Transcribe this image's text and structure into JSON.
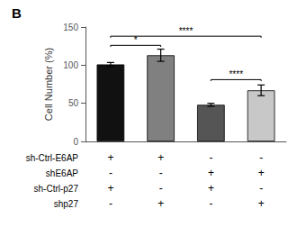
{
  "chart_data": {
    "type": "bar",
    "title": "B",
    "ylabel": "Cell Number (%)",
    "categories": [
      null,
      null,
      null,
      null
    ],
    "values": [
      101,
      113,
      48,
      67
    ],
    "errors": [
      2.5,
      8,
      2,
      7
    ],
    "colors": [
      "#111111",
      "#808080",
      "#555555",
      "#c8c8c8"
    ],
    "ylim": [
      0,
      150
    ],
    "yticks": [
      0,
      50,
      100,
      150
    ],
    "grid": false,
    "tick_labels": "y",
    "brackets": [
      {
        "from": 0,
        "to": 1,
        "y": 126,
        "label": "*"
      },
      {
        "from": 0,
        "to": 3,
        "y": 138,
        "label": "****"
      },
      {
        "from": 2,
        "to": 3,
        "y": 81,
        "label": "****"
      }
    ],
    "rows": [
      {
        "label": "sh-Ctrl-E6AP",
        "signs": [
          "+",
          "+",
          "-",
          "-"
        ]
      },
      {
        "label": "shE6AP",
        "signs": [
          "-",
          "-",
          "+",
          "+"
        ]
      },
      {
        "label": "sh-Ctrl-p27",
        "signs": [
          "+",
          "-",
          "+",
          "-"
        ]
      },
      {
        "label": "shp27",
        "signs": [
          "-",
          "+",
          "-",
          "+"
        ]
      }
    ]
  }
}
